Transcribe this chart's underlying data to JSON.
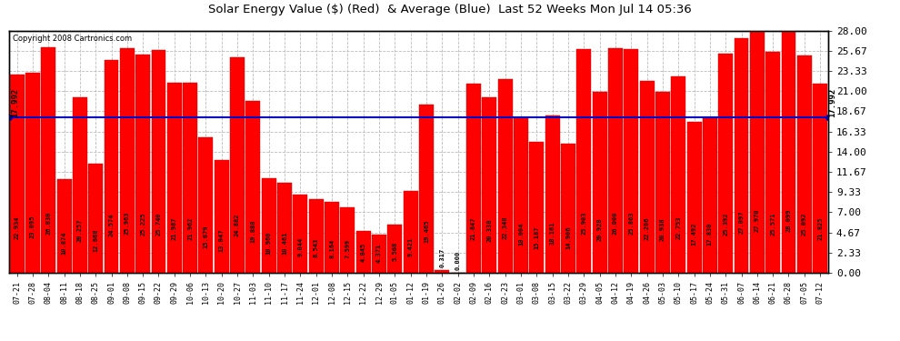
{
  "title": "Solar Energy Value ($) (Red)  & Average (Blue)  Last 52 Weeks Mon Jul 14 05:36",
  "copyright": "Copyright 2008 Cartronics.com",
  "average": 17.992,
  "bar_color": "#ff0000",
  "average_line_color": "#0000cc",
  "background_color": "#ffffff",
  "plot_bg_color": "#ffffff",
  "grid_color": "#bbbbbb",
  "ylim": [
    0,
    28.0
  ],
  "yticks": [
    0.0,
    2.33,
    4.67,
    7.0,
    9.33,
    11.67,
    14.0,
    16.33,
    18.67,
    21.0,
    23.33,
    25.67,
    28.0
  ],
  "categories": [
    "07-21",
    "07-28",
    "08-04",
    "08-11",
    "08-18",
    "08-25",
    "09-01",
    "09-08",
    "09-15",
    "09-22",
    "09-29",
    "10-06",
    "10-13",
    "10-20",
    "10-27",
    "11-03",
    "11-10",
    "11-17",
    "11-24",
    "12-01",
    "12-08",
    "12-15",
    "12-22",
    "12-29",
    "01-05",
    "01-12",
    "01-19",
    "01-26",
    "02-02",
    "02-09",
    "02-16",
    "02-23",
    "03-01",
    "03-08",
    "03-15",
    "03-22",
    "03-29",
    "04-05",
    "04-12",
    "04-19",
    "04-26",
    "05-03",
    "05-10",
    "05-17",
    "05-24",
    "05-31",
    "06-07",
    "06-14",
    "06-21",
    "06-28",
    "07-05",
    "07-12"
  ],
  "values": [
    22.934,
    23.095,
    26.03,
    10.874,
    20.257,
    12.668,
    24.574,
    25.963,
    25.225,
    25.74,
    21.987,
    21.962,
    15.679,
    13.047,
    24.882,
    19.888,
    10.96,
    10.461,
    9.044,
    8.543,
    8.164,
    7.599,
    4.845,
    4.371,
    5.568,
    9.421,
    19.465,
    0.317,
    0.0,
    21.847,
    20.338,
    22.348,
    18.004,
    15.187,
    18.161,
    14.906,
    25.903,
    20.928,
    26.0,
    25.863,
    22.206,
    20.938,
    22.753,
    17.492,
    17.83,
    25.392,
    27.097,
    27.97,
    25.571,
    28.099,
    25.092,
    21.825
  ]
}
